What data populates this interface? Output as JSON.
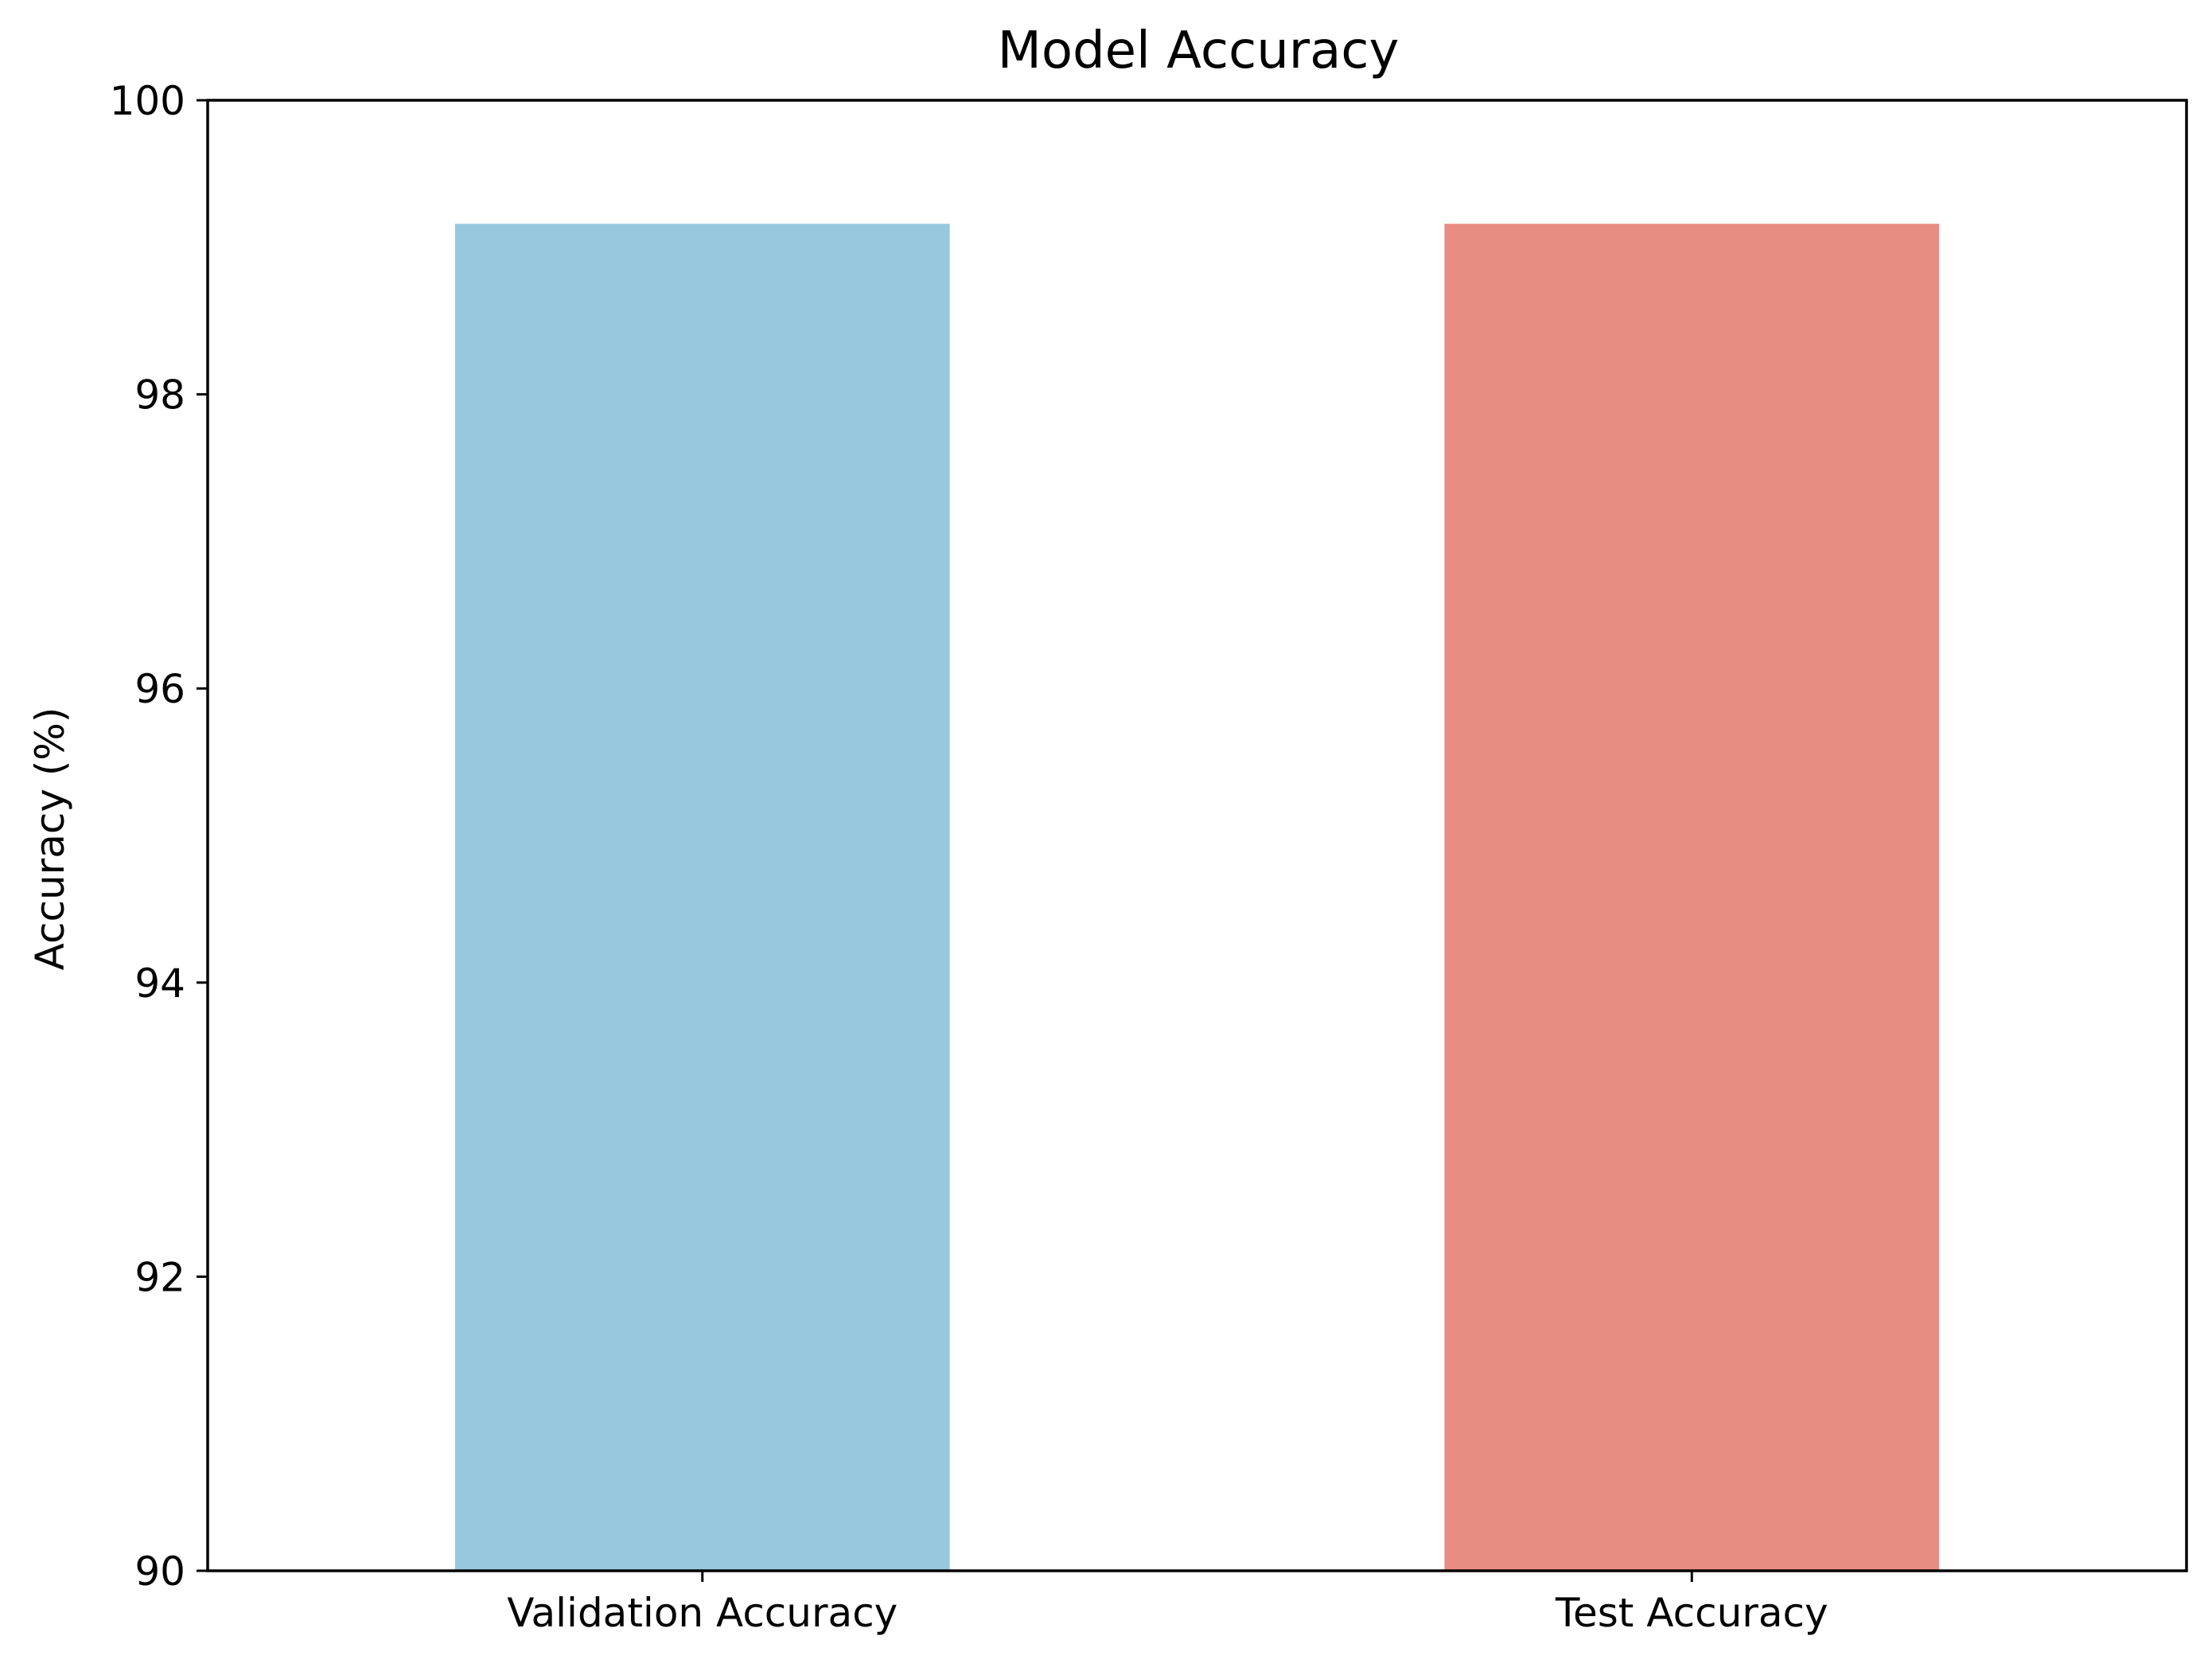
{
  "chart_data": {
    "type": "bar",
    "title": "Model Accuracy",
    "xlabel": "",
    "ylabel": "Accuracy (%)",
    "categories": [
      "Validation Accuracy",
      "Test Accuracy"
    ],
    "values": [
      99.16,
      99.16
    ],
    "colors": [
      "#97c8dd",
      "#e78d82"
    ],
    "ylim": [
      90,
      100
    ],
    "yticks": [
      90,
      92,
      94,
      96,
      98,
      100
    ],
    "grid": false,
    "legend": "none"
  }
}
